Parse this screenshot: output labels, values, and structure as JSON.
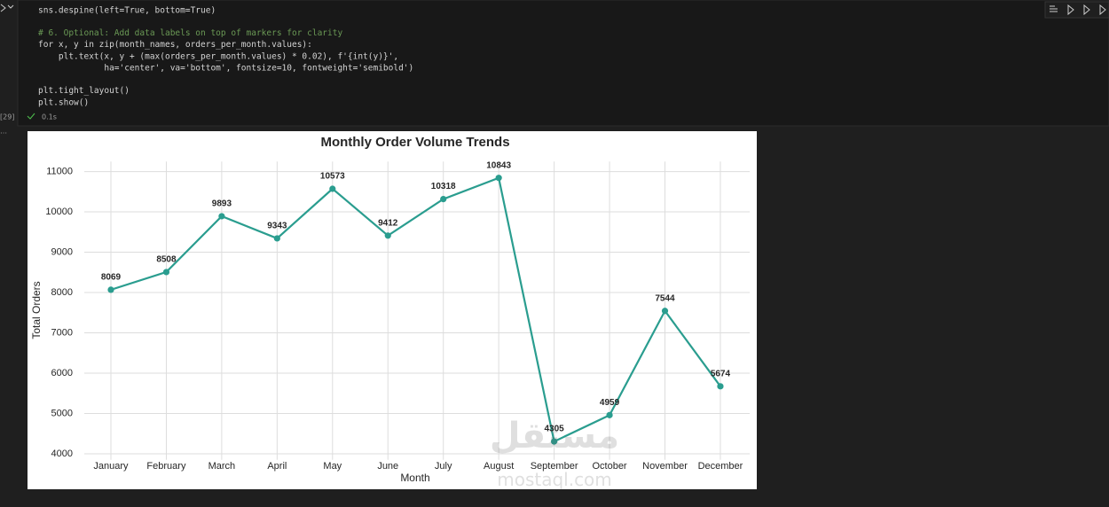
{
  "cell": {
    "execution_count": "[29]",
    "status_time": "0.1s",
    "code_blocks": [
      [
        "sns.despine(left=True, bottom=True)"
      ],
      [
        "# 6. Optional: Add data labels on top of markers for clarity",
        "for x, y in zip(month_names, orders_per_month.values):",
        "    plt.text(x, y + (max(orders_per_month.values) * 0.02), f'{int(y)}',",
        "             ha='center', va='bottom', fontsize=10, fontweight='semibold')"
      ],
      [
        "plt.tight_layout()",
        "plt.show()"
      ]
    ]
  },
  "chart_data": {
    "type": "line",
    "title": "Monthly Order Volume Trends",
    "x_label": "Month",
    "y_label": "Total Orders",
    "categories": [
      "January",
      "February",
      "March",
      "April",
      "May",
      "June",
      "July",
      "August",
      "September",
      "October",
      "November",
      "December"
    ],
    "values": [
      8069,
      8508,
      9893,
      9343,
      10573,
      9412,
      10318,
      10843,
      4305,
      4959,
      7544,
      5674
    ],
    "color": "#2a9d8f",
    "ylim": [
      3850,
      11250
    ],
    "yticks": [
      4000,
      5000,
      6000,
      7000,
      8000,
      9000,
      10000,
      11000
    ],
    "grid": true,
    "data_labels": true
  },
  "watermark": {
    "arabic": "مستقل",
    "latin": "mostaql.com"
  }
}
